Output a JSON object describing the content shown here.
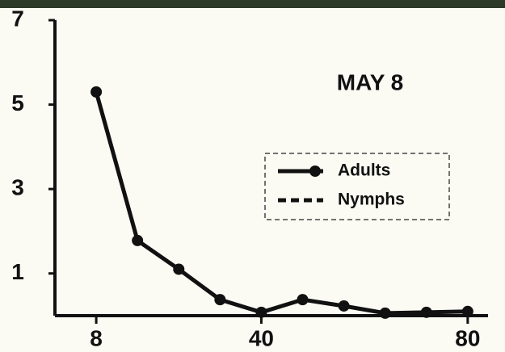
{
  "chart_data": {
    "type": "line",
    "annotation": "MAY 8",
    "x": [
      8,
      16,
      24,
      32,
      40,
      48,
      56,
      64,
      72,
      80
    ],
    "series": [
      {
        "name": "Adults",
        "color": "#111111",
        "linestyle": "solid",
        "marker": true,
        "values": [
          5.3,
          1.78,
          1.1,
          0.38,
          0.08,
          0.38,
          0.23,
          0.06,
          0.08,
          0.1
        ]
      },
      {
        "name": "Nymphs",
        "color": "#111111",
        "linestyle": "dashed",
        "marker": false,
        "values": [
          null,
          null,
          null,
          null,
          null,
          null,
          null,
          null,
          null,
          null
        ]
      }
    ],
    "xlim": [
      0,
      83
    ],
    "xticks": [
      8,
      40,
      80
    ],
    "ylim": [
      0,
      7
    ],
    "yticks": [
      1,
      3,
      5,
      7
    ],
    "grid": false,
    "legend": "right"
  }
}
